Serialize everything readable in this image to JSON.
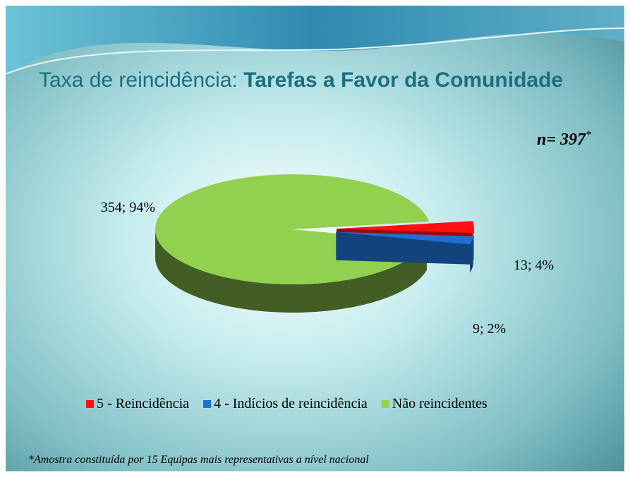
{
  "chart_data": {
    "type": "pie3d",
    "title": "Taxa de reincidência:",
    "title_bold": "Tarefas a Favor da Comunidade",
    "annotation": "n= 397",
    "annotation_mark": "*",
    "footnote": "*Amostra constituída por 15 Equipas mais representativas a nível nacional",
    "categories": [
      "5 - Reincidência",
      "4 - Indícios de reincidência",
      "Não reincidentes"
    ],
    "values": [
      13,
      9,
      354
    ],
    "value_labels": [
      "13; 4%",
      "9; 2%",
      "354; 94%"
    ],
    "colors": [
      "#ff1010",
      "#1f6fd0",
      "#92d050"
    ],
    "legend": "bottom"
  }
}
